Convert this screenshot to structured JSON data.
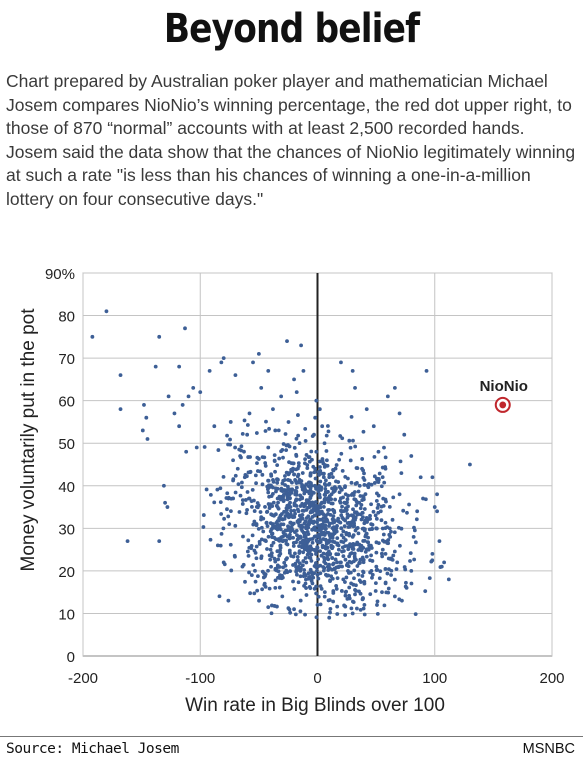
{
  "headline": "Beyond belief",
  "description": "Chart prepared by Australian poker player and mathematician Michael Josem compares NioNio’s winning percentage, the red dot upper right, to those of 870 “normal” accounts with at least 2,500 recorded hands. Josem said the data show that the chances of NioNio legitimately winning at such a rate \"is less than his chances of winning a one-in-a-million lottery on four consecutive days.\"",
  "footer": {
    "source": "Source: Michael Josem",
    "credit": "MSNBC"
  },
  "chart_data": {
    "type": "scatter",
    "xlabel": "Win rate in Big Blinds over 100",
    "ylabel": "Money voluntarily put in the pot",
    "xlim": [
      -200,
      200
    ],
    "ylim": [
      0,
      90
    ],
    "x_ticks": [
      "-200",
      "-100",
      "0",
      "100",
      "200"
    ],
    "y_ticks": [
      "0",
      "10",
      "20",
      "30",
      "40",
      "50",
      "60",
      "70",
      "80",
      "90%"
    ],
    "grid": true,
    "colors": {
      "points": "#3d5f96",
      "highlight": "#c0272d"
    },
    "highlight": {
      "label": "NioNio",
      "x": 158,
      "y": 59
    },
    "series": [
      {
        "points": [
          [
            -180,
            81
          ],
          [
            -192,
            75
          ],
          [
            -168,
            66
          ],
          [
            -162,
            27
          ],
          [
            -168,
            58
          ],
          [
            -148,
            59
          ],
          [
            -146,
            56
          ],
          [
            -149,
            53
          ],
          [
            -145,
            51
          ],
          [
            -138,
            68
          ],
          [
            -135,
            75
          ],
          [
            -135,
            27
          ],
          [
            -131,
            40
          ],
          [
            -130,
            36
          ],
          [
            -128,
            35
          ],
          [
            -127,
            61
          ],
          [
            -122,
            57
          ],
          [
            -118,
            54
          ],
          [
            -118,
            68
          ],
          [
            -115,
            59
          ],
          [
            -112,
            48
          ],
          [
            -113,
            77
          ],
          [
            -110,
            61
          ],
          [
            -106,
            63
          ],
          [
            -103,
            49
          ],
          [
            -100,
            62
          ],
          [
            -92,
            67
          ],
          [
            -88,
            54
          ],
          [
            -82,
            69
          ],
          [
            -80,
            70
          ],
          [
            -74,
            55
          ],
          [
            -72,
            46
          ],
          [
            -76,
            37
          ],
          [
            -68,
            44
          ],
          [
            -85,
            26
          ],
          [
            -80,
            22
          ],
          [
            -76,
            13
          ],
          [
            -70,
            66
          ],
          [
            -60,
            52
          ],
          [
            -58,
            57
          ],
          [
            -55,
            69
          ],
          [
            -50,
            71
          ],
          [
            -48,
            63
          ],
          [
            -42,
            67
          ],
          [
            -26,
            74
          ],
          [
            -14,
            73
          ],
          [
            -12,
            67
          ],
          [
            -20,
            65
          ],
          [
            -31,
            61
          ],
          [
            -38,
            58
          ],
          [
            20,
            69
          ],
          [
            30,
            67
          ],
          [
            32,
            63
          ],
          [
            42,
            58
          ],
          [
            48,
            54
          ],
          [
            52,
            48
          ],
          [
            58,
            44
          ],
          [
            60,
            61
          ],
          [
            66,
            63
          ],
          [
            70,
            57
          ],
          [
            74,
            52
          ],
          [
            80,
            47
          ],
          [
            88,
            42
          ],
          [
            93,
            67
          ],
          [
            100,
            35
          ],
          [
            102,
            34
          ],
          [
            104,
            27
          ],
          [
            98,
            24
          ],
          [
            106,
            21
          ],
          [
            108,
            22
          ],
          [
            112,
            18
          ],
          [
            102,
            38
          ],
          [
            130,
            45
          ],
          [
            98,
            42
          ],
          [
            90,
            37
          ],
          [
            85,
            34
          ],
          [
            82,
            28
          ],
          [
            80,
            20
          ],
          [
            76,
            16
          ],
          [
            72,
            13
          ],
          [
            66,
            14
          ],
          [
            55,
            15
          ],
          [
            40,
            12
          ],
          [
            30,
            10
          ],
          [
            10,
            9
          ],
          [
            0,
            12
          ],
          [
            -20,
            11
          ],
          [
            -30,
            14
          ],
          [
            -45,
            17
          ],
          [
            -56,
            19
          ],
          [
            -64,
            21
          ],
          [
            -40,
            25
          ],
          [
            -30,
            28
          ],
          [
            -22,
            30
          ],
          [
            -15,
            33
          ],
          [
            -8,
            36
          ],
          [
            -5,
            40
          ],
          [
            -2,
            44
          ],
          [
            -1,
            48
          ],
          [
            -3,
            52
          ],
          [
            -2,
            56
          ],
          [
            -1,
            60
          ],
          [
            2,
            58
          ],
          [
            4,
            54
          ],
          [
            6,
            50
          ],
          [
            8,
            46
          ],
          [
            10,
            42
          ],
          [
            12,
            38
          ],
          [
            14,
            34
          ],
          [
            16,
            30
          ],
          [
            18,
            26
          ],
          [
            20,
            22
          ],
          [
            22,
            18
          ],
          [
            24,
            15
          ],
          [
            26,
            20
          ],
          [
            28,
            24
          ],
          [
            30,
            28
          ],
          [
            32,
            32
          ],
          [
            34,
            36
          ],
          [
            36,
            40
          ],
          [
            38,
            44
          ],
          [
            -18,
            47
          ],
          [
            -24,
            43
          ],
          [
            -28,
            39
          ],
          [
            -34,
            35
          ],
          [
            -38,
            31
          ],
          [
            -44,
            27
          ],
          [
            -48,
            23
          ],
          [
            -52,
            31
          ],
          [
            -58,
            37
          ],
          [
            -62,
            42
          ],
          [
            -66,
            47
          ],
          [
            -42,
            49
          ],
          [
            -36,
            53
          ],
          [
            -12,
            27
          ],
          [
            -6,
            23
          ],
          [
            -10,
            19
          ],
          [
            -16,
            21
          ],
          [
            -26,
            23
          ],
          [
            -32,
            19
          ],
          [
            -36,
            16
          ],
          [
            44,
            26
          ],
          [
            50,
            30
          ],
          [
            54,
            34
          ],
          [
            58,
            24
          ],
          [
            62,
            28
          ],
          [
            64,
            32
          ],
          [
            68,
            22
          ],
          [
            70,
            38
          ],
          [
            46,
            20
          ],
          [
            40,
            17
          ],
          [
            36,
            22
          ]
        ]
      }
    ]
  }
}
